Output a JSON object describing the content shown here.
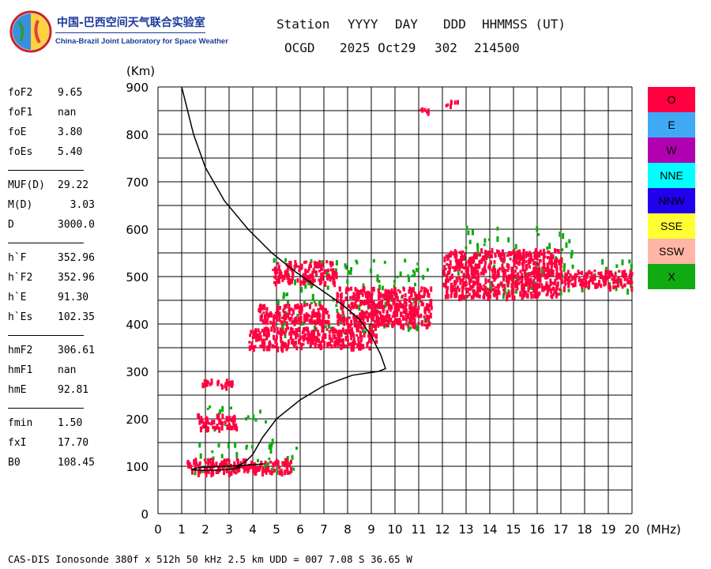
{
  "logo": {
    "title_cn": "中国-巴西空间天气联合实验室",
    "title_en": "China-Brazil Joint Laboratory for Space Weather"
  },
  "header": {
    "labels": [
      "Station",
      "YYYY",
      "DAY",
      "DDD",
      "HHMMSS (UT)"
    ],
    "values": [
      "OCGD",
      "2025 Oct29",
      "302",
      "214500"
    ]
  },
  "params": [
    [
      {
        "label": "foF2",
        "value": "9.65"
      },
      {
        "label": "foF1",
        "value": "nan"
      },
      {
        "label": "foE",
        "value": "3.80"
      },
      {
        "label": "foEs",
        "value": "5.40"
      }
    ],
    [
      {
        "label": "MUF(D)",
        "value": "29.22"
      },
      {
        "label": "M(D)",
        "value": "  3.03"
      },
      {
        "label": "D",
        "value": "3000.0"
      }
    ],
    [
      {
        "label": "h`F",
        "value": "352.96"
      },
      {
        "label": "h`F2",
        "value": "352.96"
      },
      {
        "label": "h`E",
        "value": "91.30"
      },
      {
        "label": "h`Es",
        "value": "102.35"
      }
    ],
    [
      {
        "label": "hmF2",
        "value": "306.61"
      },
      {
        "label": "hmF1",
        "value": "nan"
      },
      {
        "label": "hmE",
        "value": "92.81"
      }
    ],
    [
      {
        "label": "fmin",
        "value": "1.50"
      },
      {
        "label": "fxI",
        "value": "17.70"
      },
      {
        "label": "B0",
        "value": "108.45"
      }
    ]
  ],
  "legend": [
    {
      "label": "O",
      "color": "#ff0040"
    },
    {
      "label": "E",
      "color": "#3fa9f5"
    },
    {
      "label": "W",
      "color": "#b000b0"
    },
    {
      "label": "NNE",
      "color": "#00ffff"
    },
    {
      "label": "NNW",
      "color": "#2200ee"
    },
    {
      "label": "SSE",
      "color": "#ffff33"
    },
    {
      "label": "SSW",
      "color": "#ffb6a6"
    },
    {
      "label": "X",
      "color": "#11aa11"
    }
  ],
  "footer": "CAS-DIS Ionosonde 380f x 512h 50 kHz 2.5 km UDD = 007 7.08 S 36.65 W",
  "chart_data": {
    "type": "scatter",
    "xlabel": "(MHz)",
    "ylabel": "(Km)",
    "xlim": [
      0,
      20
    ],
    "ylim": [
      0,
      900
    ],
    "x_ticks": [
      "0",
      "1",
      "2",
      "3",
      "4",
      "5",
      "6",
      "7",
      "8",
      "9",
      "10",
      "11",
      "12",
      "13",
      "14",
      "15",
      "16",
      "17",
      "18",
      "19",
      "20"
    ],
    "y_ticks": [
      "0",
      "100",
      "200",
      "300",
      "400",
      "500",
      "600",
      "700",
      "800",
      "900"
    ],
    "grid": true,
    "profile_line": {
      "color": "#000000",
      "points": [
        [
          1.0,
          900
        ],
        [
          1.5,
          800
        ],
        [
          2.0,
          730
        ],
        [
          2.8,
          660
        ],
        [
          3.8,
          600
        ],
        [
          4.8,
          550
        ],
        [
          5.8,
          510
        ],
        [
          6.8,
          475
        ],
        [
          7.8,
          440
        ],
        [
          8.5,
          410
        ],
        [
          9.0,
          375
        ],
        [
          9.4,
          335
        ],
        [
          9.6,
          306
        ],
        [
          9.3,
          300
        ],
        [
          8.2,
          292
        ],
        [
          7.0,
          270
        ],
        [
          6.0,
          240
        ],
        [
          5.0,
          200
        ],
        [
          4.4,
          160
        ],
        [
          4.0,
          125
        ],
        [
          3.7,
          110
        ],
        [
          3.5,
          104
        ],
        [
          3.3,
          100
        ],
        [
          3.5,
          98
        ],
        [
          3.0,
          93
        ],
        [
          2.0,
          91
        ],
        [
          1.4,
          93
        ],
        [
          1.7,
          97
        ],
        [
          2.4,
          99
        ],
        [
          3.3,
          101
        ],
        [
          4.2,
          104
        ],
        [
          4.5,
          105
        ]
      ]
    },
    "o_traces": [
      {
        "f": [
          1.2,
          5.6
        ],
        "h": [
          88,
          118
        ]
      },
      {
        "f": [
          1.6,
          3.3
        ],
        "h": [
          183,
          212
        ]
      },
      {
        "f": [
          1.8,
          3.1
        ],
        "h": [
          270,
          285
        ]
      },
      {
        "f": [
          3.8,
          9.2
        ],
        "h": [
          352,
          395
        ]
      },
      {
        "f": [
          4.2,
          7.2
        ],
        "h": [
          405,
          445
        ]
      },
      {
        "f": [
          4.8,
          7.5
        ],
        "h": [
          490,
          535
        ]
      },
      {
        "f": [
          7.5,
          11.5
        ],
        "h": [
          398,
          480
        ]
      },
      {
        "f": [
          12.0,
          17.0
        ],
        "h": [
          460,
          560
        ]
      },
      {
        "f": [
          17.0,
          20.0
        ],
        "h": [
          480,
          515
        ]
      },
      {
        "f": [
          11.0,
          11.5
        ],
        "h": [
          848,
          858
        ]
      },
      {
        "f": [
          12.1,
          12.6
        ],
        "h": [
          862,
          875
        ]
      }
    ],
    "x_traces": [
      {
        "f": [
          1.5,
          6.0
        ],
        "h": [
          88,
          160
        ]
      },
      {
        "f": [
          2.0,
          4.5
        ],
        "h": [
          180,
          230
        ]
      },
      {
        "f": [
          4.8,
          11.5
        ],
        "h": [
          380,
          540
        ]
      },
      {
        "f": [
          12.5,
          17.5
        ],
        "h": [
          460,
          610
        ]
      },
      {
        "f": [
          17.5,
          20.0
        ],
        "h": [
          470,
          540
        ]
      }
    ]
  }
}
